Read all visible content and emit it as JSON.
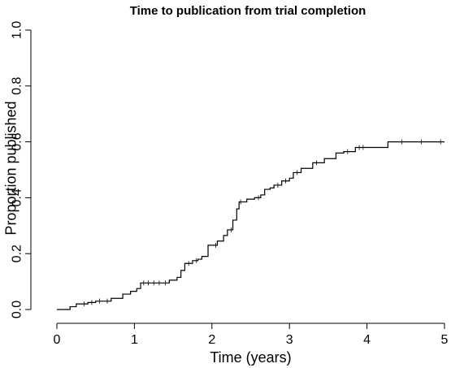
{
  "chart_data": {
    "type": "line",
    "subtype": "kaplan-meier-step",
    "title": "Time to publication from trial completion",
    "xlabel": "Time (years)",
    "ylabel": "Proportion published",
    "xlim": [
      0,
      5
    ],
    "ylim": [
      0,
      1
    ],
    "x_ticks": [
      "0",
      "1",
      "2",
      "3",
      "4",
      "5"
    ],
    "y_ticks": [
      "0.0",
      "0.2",
      "0.4",
      "0.6",
      "0.8",
      "1.0"
    ],
    "grid": false,
    "legend": "none",
    "line_color": "#000000",
    "series": [
      {
        "x": [
          0,
          0.17,
          0.25,
          0.4,
          0.5,
          0.7,
          0.85,
          0.95,
          1.03,
          1.08,
          1.45,
          1.55,
          1.6,
          1.65,
          1.75,
          1.82,
          1.87,
          1.95,
          2.07,
          2.15,
          2.2,
          2.27,
          2.32,
          2.35,
          2.45,
          2.55,
          2.63,
          2.68,
          2.75,
          2.8,
          2.9,
          3.0,
          3.05,
          3.15,
          3.3,
          3.45,
          3.6,
          3.7,
          3.85,
          4.27,
          5.0
        ],
        "y": [
          0,
          0.01,
          0.02,
          0.025,
          0.03,
          0.04,
          0.055,
          0.065,
          0.075,
          0.095,
          0.105,
          0.115,
          0.14,
          0.165,
          0.175,
          0.18,
          0.19,
          0.23,
          0.245,
          0.265,
          0.285,
          0.32,
          0.36,
          0.385,
          0.395,
          0.4,
          0.41,
          0.43,
          0.435,
          0.445,
          0.46,
          0.47,
          0.49,
          0.505,
          0.525,
          0.54,
          0.56,
          0.565,
          0.58,
          0.6,
          0.6
        ]
      }
    ],
    "censored_times": [
      0.35,
      0.45,
      0.55,
      0.65,
      1.12,
      1.18,
      1.25,
      1.32,
      1.4,
      1.7,
      1.8,
      2.05,
      2.25,
      2.37,
      2.6,
      2.85,
      2.95,
      3.1,
      3.35,
      3.75,
      3.9,
      3.95,
      4.45,
      4.7,
      4.95
    ]
  }
}
